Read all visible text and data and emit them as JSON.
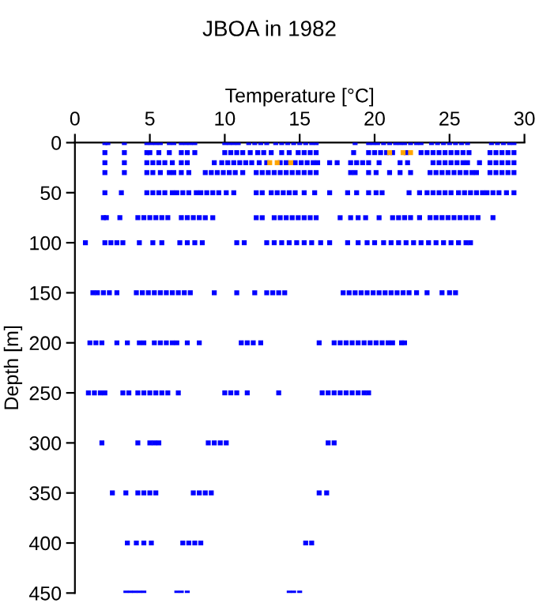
{
  "chart_data": {
    "type": "scatter",
    "title": "JBOA in 1982",
    "xlabel": "Temperature [°C]",
    "ylabel": "Depth [m]",
    "xlim": [
      0,
      30
    ],
    "xticks": [
      0,
      5,
      10,
      15,
      20,
      25,
      30
    ],
    "ylim": [
      450,
      0
    ],
    "yticks": [
      0,
      50,
      100,
      150,
      200,
      250,
      300,
      350,
      400,
      450
    ],
    "grid": false,
    "legend": false,
    "marker": "square",
    "series": [
      {
        "color": "#0000ff",
        "x": [
          2.0,
          2.2,
          3.3,
          4.8,
          5.1,
          5.4,
          5.7,
          6.3,
          6.6,
          7.1,
          7.4,
          7.7,
          8.0,
          10.0,
          10.3,
          10.6,
          10.9,
          11.6,
          12.0,
          12.4,
          12.8,
          13.4,
          13.8,
          14.2,
          14.6,
          15.0,
          15.4,
          15.8,
          16.1,
          18.7,
          19.6,
          19.9,
          20.2,
          20.6,
          21.0,
          21.4,
          21.7,
          22.0,
          22.4,
          22.8,
          23.1,
          23.8,
          24.2,
          24.6,
          25.0,
          25.4,
          25.8,
          26.2,
          27.8,
          28.2,
          28.6,
          29.0,
          29.3
        ],
        "values": [
          0,
          0,
          0,
          0,
          0,
          0,
          0,
          0,
          0,
          0,
          0,
          0,
          0,
          0,
          0,
          0,
          0,
          0,
          0,
          0,
          0,
          0,
          0,
          0,
          0,
          0,
          0,
          0,
          0,
          0,
          0,
          0,
          0,
          0,
          0,
          0,
          0,
          0,
          0,
          0,
          0,
          0,
          0,
          0,
          0,
          0,
          0,
          0,
          0,
          0,
          0,
          0,
          0
        ]
      },
      {
        "color": "#0000ff",
        "x": [
          2.0,
          3.3,
          4.8,
          5.0,
          5.6,
          6.3,
          7.1,
          7.5,
          8.0,
          10.0,
          10.4,
          10.8,
          11.2,
          11.7,
          12.2,
          12.6,
          13.1,
          13.8,
          14.3,
          14.9,
          15.3,
          15.7,
          16.1,
          18.6,
          19.6,
          20.0,
          20.4,
          20.8,
          21.2,
          22.1,
          23.1,
          23.5,
          23.9,
          24.3,
          24.7,
          25.1,
          25.5,
          25.9,
          26.3,
          27.7,
          28.1,
          28.5,
          28.9,
          29.3
        ],
        "values": [
          10,
          10,
          10,
          10,
          10,
          10,
          10,
          10,
          10,
          10,
          10,
          10,
          10,
          10,
          10,
          10,
          10,
          10,
          10,
          10,
          10,
          10,
          10,
          10,
          10,
          10,
          10,
          10,
          10,
          10,
          10,
          10,
          10,
          10,
          10,
          10,
          10,
          10,
          10,
          10,
          10,
          10,
          10,
          10
        ]
      },
      {
        "color": "#0000ff",
        "x": [
          2.0,
          3.3,
          4.8,
          5.2,
          5.6,
          6.0,
          6.5,
          7.1,
          7.5,
          9.3,
          9.8,
          10.2,
          10.6,
          11.0,
          11.4,
          11.8,
          12.3,
          12.8,
          13.7,
          14.1,
          14.7,
          15.1,
          15.5,
          15.9,
          16.2,
          17.0,
          17.5,
          18.4,
          18.8,
          19.2,
          19.6,
          20.3,
          21.7,
          22.2,
          23.9,
          24.3,
          24.7,
          25.1,
          25.5,
          25.9,
          26.2,
          27.0,
          27.7,
          28.1,
          28.5,
          28.9,
          29.3
        ],
        "values": [
          20,
          20,
          20,
          20,
          20,
          20,
          20,
          20,
          20,
          20,
          20,
          20,
          20,
          20,
          20,
          20,
          20,
          20,
          20,
          20,
          20,
          20,
          20,
          20,
          20,
          20,
          20,
          20,
          20,
          20,
          20,
          20,
          20,
          20,
          20,
          20,
          20,
          20,
          20,
          20,
          20,
          20,
          20,
          20,
          20,
          20,
          20
        ]
      },
      {
        "color": "#0000ff",
        "x": [
          2.0,
          3.3,
          4.8,
          5.2,
          5.7,
          6.3,
          6.6,
          7.1,
          7.6,
          8.7,
          9.1,
          9.5,
          9.9,
          10.3,
          10.7,
          11.2,
          12.1,
          12.5,
          12.9,
          13.3,
          13.7,
          14.1,
          14.5,
          14.9,
          15.3,
          15.7,
          16.1,
          18.4,
          18.7,
          19.6,
          20.1,
          21.0,
          21.7,
          22.4,
          23.7,
          24.1,
          24.5,
          24.9,
          25.3,
          25.7,
          26.1,
          26.5,
          26.8,
          27.7,
          28.1,
          28.5,
          28.9,
          29.3
        ],
        "values": [
          30,
          30,
          30,
          30,
          30,
          30,
          30,
          30,
          30,
          30,
          30,
          30,
          30,
          30,
          30,
          30,
          30,
          30,
          30,
          30,
          30,
          30,
          30,
          30,
          30,
          30,
          30,
          30,
          30,
          30,
          30,
          30,
          30,
          30,
          30,
          30,
          30,
          30,
          30,
          30,
          30,
          30,
          30,
          30,
          30,
          30,
          30,
          30
        ]
      },
      {
        "color": "#0000ff",
        "x": [
          2.0,
          3.1,
          4.8,
          5.2,
          5.6,
          6.0,
          6.5,
          6.8,
          7.2,
          7.6,
          8.1,
          8.4,
          8.8,
          9.2,
          9.6,
          10.1,
          10.6,
          12.1,
          12.5,
          13.1,
          13.5,
          13.9,
          14.3,
          14.7,
          15.3,
          16.0,
          17.0,
          18.2,
          18.8,
          19.6,
          20.1,
          20.5,
          22.3,
          23.0,
          23.5,
          23.9,
          24.3,
          24.7,
          25.1,
          25.6,
          26.0,
          26.4,
          26.8,
          27.2,
          27.5,
          27.9,
          28.3,
          28.8,
          29.3
        ],
        "values": [
          50,
          50,
          50,
          50,
          50,
          50,
          50,
          50,
          50,
          50,
          50,
          50,
          50,
          50,
          50,
          50,
          50,
          50,
          50,
          50,
          50,
          50,
          50,
          50,
          50,
          50,
          50,
          50,
          50,
          50,
          50,
          50,
          50,
          50,
          50,
          50,
          50,
          50,
          50,
          50,
          50,
          50,
          50,
          50,
          50,
          50,
          50,
          50,
          50
        ]
      },
      {
        "color": "#0000ff",
        "x": [
          1.9,
          2.1,
          3.0,
          4.2,
          4.6,
          5.0,
          5.4,
          5.8,
          6.2,
          7.1,
          7.5,
          7.9,
          8.3,
          8.7,
          9.2,
          12.1,
          12.5,
          13.3,
          13.7,
          14.1,
          14.5,
          14.9,
          15.3,
          15.7,
          16.1,
          17.7,
          18.4,
          18.9,
          19.4,
          20.3,
          21.2,
          21.6,
          22.0,
          22.4,
          23.0,
          23.7,
          24.1,
          24.5,
          24.9,
          25.3,
          25.7,
          26.1,
          26.5,
          26.9,
          27.9
        ],
        "values": [
          75,
          75,
          75,
          75,
          75,
          75,
          75,
          75,
          75,
          75,
          75,
          75,
          75,
          75,
          75,
          75,
          75,
          75,
          75,
          75,
          75,
          75,
          75,
          75,
          75,
          75,
          75,
          75,
          75,
          75,
          75,
          75,
          75,
          75,
          75,
          75,
          75,
          75,
          75,
          75,
          75,
          75,
          75,
          75,
          75
        ]
      },
      {
        "color": "#0000ff",
        "x": [
          0.7,
          2.0,
          2.4,
          2.8,
          3.2,
          4.3,
          5.2,
          5.8,
          7.0,
          7.5,
          8.0,
          8.5,
          10.8,
          11.3,
          12.8,
          13.3,
          13.8,
          14.3,
          14.8,
          15.3,
          15.8,
          16.4,
          17.0,
          18.2,
          18.9,
          19.5,
          20.0,
          20.6,
          21.1,
          21.6,
          22.1,
          22.6,
          23.1,
          23.6,
          24.1,
          24.6,
          25.1,
          25.6,
          26.1,
          26.4
        ],
        "values": [
          100,
          100,
          100,
          100,
          100,
          100,
          100,
          100,
          100,
          100,
          100,
          100,
          100,
          100,
          100,
          100,
          100,
          100,
          100,
          100,
          100,
          100,
          100,
          100,
          100,
          100,
          100,
          100,
          100,
          100,
          100,
          100,
          100,
          100,
          100,
          100,
          100,
          100,
          100,
          100
        ]
      },
      {
        "color": "#0000ff",
        "x": [
          1.2,
          1.5,
          1.9,
          2.3,
          2.8,
          4.1,
          4.5,
          4.9,
          5.3,
          5.7,
          6.1,
          6.5,
          6.9,
          7.3,
          7.7,
          9.3,
          10.8,
          12.0,
          12.8,
          13.2,
          13.6,
          14.0,
          17.9,
          18.3,
          18.7,
          19.1,
          19.5,
          19.9,
          20.3,
          20.7,
          21.1,
          21.5,
          21.9,
          22.3,
          22.8,
          23.5,
          24.5,
          25.0,
          25.4
        ],
        "values": [
          150,
          150,
          150,
          150,
          150,
          150,
          150,
          150,
          150,
          150,
          150,
          150,
          150,
          150,
          150,
          150,
          150,
          150,
          150,
          150,
          150,
          150,
          150,
          150,
          150,
          150,
          150,
          150,
          150,
          150,
          150,
          150,
          150,
          150,
          150,
          150,
          150,
          150,
          150
        ]
      },
      {
        "color": "#0000ff",
        "x": [
          1.0,
          1.4,
          1.8,
          2.8,
          3.5,
          4.3,
          4.6,
          5.3,
          5.7,
          6.1,
          6.5,
          6.8,
          7.5,
          8.3,
          11.1,
          11.5,
          11.9,
          12.4,
          16.3,
          17.3,
          17.7,
          18.1,
          18.5,
          18.9,
          19.3,
          19.7,
          20.1,
          20.5,
          20.9,
          21.2,
          21.8,
          22.0
        ],
        "values": [
          200,
          200,
          200,
          200,
          200,
          200,
          200,
          200,
          200,
          200,
          200,
          200,
          200,
          200,
          200,
          200,
          200,
          200,
          200,
          200,
          200,
          200,
          200,
          200,
          200,
          200,
          200,
          200,
          200,
          200,
          200,
          200
        ]
      },
      {
        "color": "#0000ff",
        "x": [
          0.9,
          1.3,
          1.7,
          2.0,
          3.2,
          3.6,
          4.2,
          4.6,
          5.0,
          5.4,
          5.8,
          6.2,
          6.9,
          10.0,
          10.4,
          10.8,
          11.5,
          13.6,
          16.5,
          16.9,
          17.3,
          17.7,
          18.1,
          18.5,
          18.9,
          19.3,
          19.6
        ],
        "values": [
          250,
          250,
          250,
          250,
          250,
          250,
          250,
          250,
          250,
          250,
          250,
          250,
          250,
          250,
          250,
          250,
          250,
          250,
          250,
          250,
          250,
          250,
          250,
          250,
          250,
          250,
          250
        ]
      },
      {
        "color": "#0000ff",
        "x": [
          1.8,
          4.2,
          5.0,
          5.3,
          5.6,
          8.9,
          9.3,
          9.7,
          10.1,
          16.9,
          17.3
        ],
        "values": [
          300,
          300,
          300,
          300,
          300,
          300,
          300,
          300,
          300,
          300,
          300
        ]
      },
      {
        "color": "#0000ff",
        "x": [
          2.5,
          3.4,
          4.2,
          4.6,
          5.0,
          5.4,
          7.9,
          8.3,
          8.7,
          9.1,
          16.3,
          16.8
        ],
        "values": [
          350,
          350,
          350,
          350,
          350,
          350,
          350,
          350,
          350,
          350,
          350,
          350
        ]
      },
      {
        "color": "#0000ff",
        "x": [
          3.5,
          4.1,
          4.6,
          5.1,
          7.2,
          7.6,
          8.0,
          8.4,
          15.4,
          15.8
        ],
        "values": [
          400,
          400,
          400,
          400,
          400,
          400,
          400,
          400,
          400,
          400
        ]
      },
      {
        "color": "#0000ff",
        "x": [
          3.4,
          3.7,
          4.0,
          4.3,
          4.6,
          6.8,
          7.1,
          7.5,
          14.3,
          14.6,
          15.0
        ],
        "values": [
          450,
          450,
          450,
          450,
          450,
          450,
          450,
          450,
          450,
          450,
          450
        ]
      },
      {
        "color": "#ffa500",
        "x": [
          21.0,
          21.9,
          22.4,
          13.0,
          13.5,
          14.4
        ],
        "values": [
          10,
          10,
          10,
          20,
          20,
          20
        ]
      }
    ]
  }
}
